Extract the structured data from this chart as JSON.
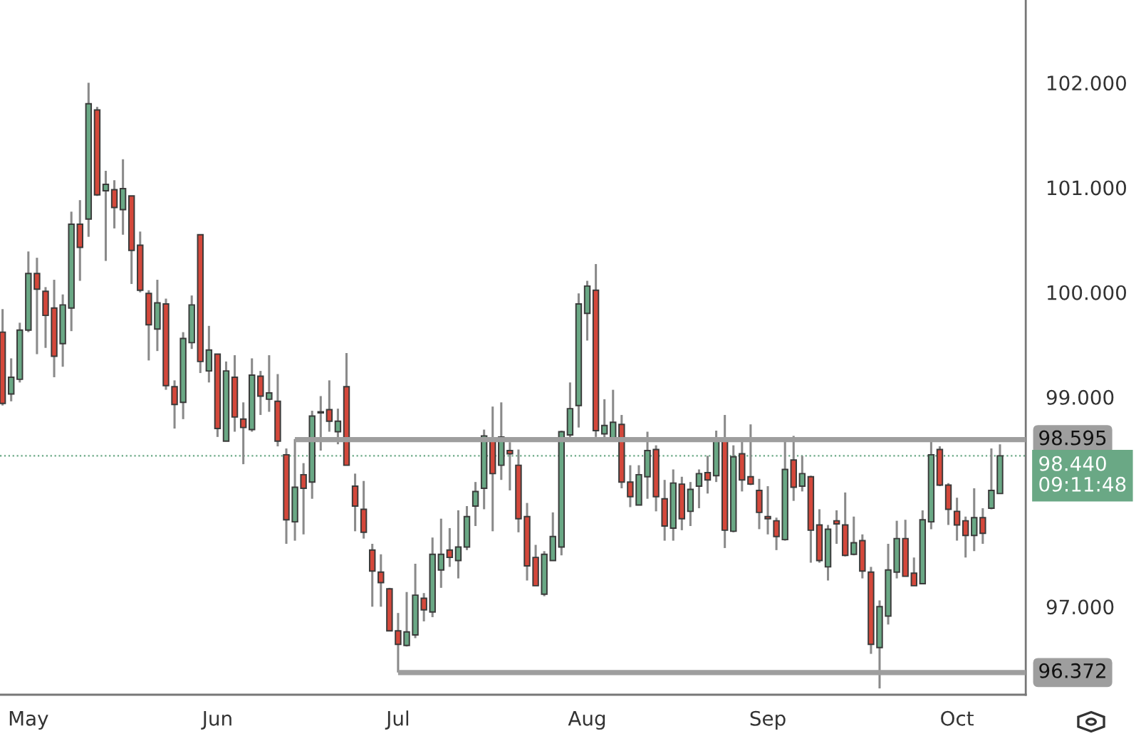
{
  "chart_data": {
    "type": "candlestick",
    "categories": [
      null,
      null,
      null,
      "May",
      null,
      null,
      null,
      null,
      null,
      null,
      null,
      null,
      null,
      null,
      null,
      null,
      null,
      null,
      null,
      null,
      null,
      null,
      null,
      null,
      null,
      "Jun",
      null,
      null,
      null,
      null,
      null,
      null,
      null,
      null,
      null,
      null,
      null,
      null,
      null,
      null,
      null,
      null,
      null,
      null,
      null,
      null,
      "Jul",
      null,
      null,
      null,
      null,
      null,
      null,
      null,
      null,
      null,
      null,
      null,
      null,
      null,
      null,
      null,
      null,
      null,
      null,
      null,
      null,
      null,
      "Aug",
      null,
      null,
      null,
      null,
      null,
      null,
      null,
      null,
      null,
      null,
      null,
      null,
      null,
      null,
      null,
      null,
      null,
      null,
      null,
      null,
      "Sep",
      null,
      null,
      null,
      null,
      null,
      null,
      null,
      null,
      null,
      null,
      null,
      null,
      null,
      null,
      null,
      null,
      null,
      null,
      null,
      null,
      null,
      "Oct",
      null,
      null,
      null,
      null,
      null
    ],
    "ohlc": [
      [
        99.62,
        99.84,
        98.92,
        98.94
      ],
      [
        99.03,
        99.37,
        98.96,
        99.19
      ],
      [
        99.17,
        99.71,
        99.14,
        99.64
      ],
      [
        99.64,
        100.39,
        99.62,
        100.18
      ],
      [
        100.18,
        100.33,
        99.41,
        100.03
      ],
      [
        100.01,
        100.05,
        99.47,
        99.78
      ],
      [
        99.85,
        100.12,
        99.19,
        99.39
      ],
      [
        99.51,
        99.98,
        99.29,
        99.88
      ],
      [
        99.85,
        100.77,
        99.63,
        100.65
      ],
      [
        100.65,
        100.88,
        100.11,
        100.43
      ],
      [
        100.7,
        102.0,
        100.53,
        101.8
      ],
      [
        101.74,
        101.77,
        100.92,
        100.93
      ],
      [
        100.97,
        101.16,
        100.3,
        101.03
      ],
      [
        100.98,
        101.07,
        100.61,
        100.81
      ],
      [
        100.79,
        101.27,
        100.55,
        100.99
      ],
      [
        100.92,
        100.92,
        100.08,
        100.4
      ],
      [
        100.45,
        100.58,
        100.0,
        100.02
      ],
      [
        99.99,
        100.02,
        99.35,
        99.69
      ],
      [
        99.65,
        100.12,
        99.44,
        99.9
      ],
      [
        99.89,
        99.94,
        99.07,
        99.11
      ],
      [
        99.1,
        99.16,
        98.7,
        98.93
      ],
      [
        98.95,
        99.62,
        98.79,
        99.56
      ],
      [
        99.52,
        99.97,
        99.46,
        99.88
      ],
      [
        100.55,
        100.55,
        99.23,
        99.34
      ],
      [
        99.25,
        99.68,
        99.14,
        99.45
      ],
      [
        99.41,
        99.41,
        98.62,
        98.7
      ],
      [
        98.58,
        99.34,
        98.58,
        99.25
      ],
      [
        99.19,
        99.4,
        98.67,
        98.81
      ],
      [
        98.79,
        98.95,
        98.36,
        98.71
      ],
      [
        98.69,
        99.37,
        98.67,
        99.21
      ],
      [
        99.2,
        99.25,
        98.83,
        99.01
      ],
      [
        98.98,
        99.4,
        98.86,
        99.04
      ],
      [
        98.96,
        99.22,
        98.53,
        98.58
      ],
      [
        98.45,
        98.51,
        97.6,
        97.83
      ],
      [
        97.81,
        98.6,
        97.63,
        98.14
      ],
      [
        98.26,
        98.37,
        97.69,
        98.13
      ],
      [
        98.19,
        98.87,
        98.03,
        98.82
      ],
      [
        98.86,
        99.01,
        98.49,
        98.85
      ],
      [
        98.88,
        99.16,
        98.67,
        98.77
      ],
      [
        98.67,
        98.89,
        98.55,
        98.77
      ],
      [
        99.1,
        99.42,
        98.35,
        98.35
      ],
      [
        98.15,
        98.27,
        97.72,
        97.96
      ],
      [
        97.93,
        98.2,
        97.65,
        97.71
      ],
      [
        97.54,
        97.6,
        97.0,
        97.34
      ],
      [
        97.33,
        97.5,
        97.0,
        97.23
      ],
      [
        97.17,
        97.18,
        96.77,
        96.77
      ],
      [
        96.77,
        96.94,
        96.372,
        96.64
      ],
      [
        96.63,
        97.14,
        96.62,
        96.76
      ],
      [
        96.73,
        97.41,
        96.7,
        97.11
      ],
      [
        97.08,
        97.13,
        96.86,
        96.97
      ],
      [
        96.95,
        97.66,
        96.9,
        97.5
      ],
      [
        97.35,
        97.84,
        97.18,
        97.5
      ],
      [
        97.54,
        97.75,
        97.38,
        97.47
      ],
      [
        97.44,
        97.92,
        97.27,
        97.57
      ],
      [
        97.57,
        97.96,
        97.54,
        97.86
      ],
      [
        97.96,
        98.19,
        97.77,
        98.1
      ],
      [
        98.13,
        98.69,
        97.93,
        98.63
      ],
      [
        98.58,
        98.91,
        97.72,
        98.27
      ],
      [
        98.35,
        98.95,
        98.21,
        98.62
      ],
      [
        98.49,
        98.57,
        98.11,
        98.46
      ],
      [
        98.35,
        98.5,
        97.71,
        97.84
      ],
      [
        97.86,
        97.99,
        97.25,
        97.39
      ],
      [
        97.47,
        97.59,
        97.2,
        97.2
      ],
      [
        97.12,
        97.53,
        97.1,
        97.5
      ],
      [
        97.44,
        97.9,
        97.44,
        97.67
      ],
      [
        97.57,
        98.68,
        97.49,
        98.67
      ],
      [
        98.64,
        99.14,
        98.59,
        98.89
      ],
      [
        98.92,
        99.99,
        98.71,
        99.89
      ],
      [
        99.8,
        100.11,
        99.54,
        100.06
      ],
      [
        100.02,
        100.27,
        98.62,
        98.68
      ],
      [
        98.65,
        98.98,
        98.6,
        98.73
      ],
      [
        98.61,
        99.07,
        98.6,
        98.76
      ],
      [
        98.74,
        98.83,
        98.13,
        98.19
      ],
      [
        98.19,
        98.35,
        97.95,
        98.05
      ],
      [
        97.97,
        98.35,
        97.97,
        98.26
      ],
      [
        98.24,
        98.67,
        98.03,
        98.49
      ],
      [
        98.5,
        98.54,
        97.91,
        98.05
      ],
      [
        98.03,
        98.21,
        97.63,
        97.77
      ],
      [
        97.75,
        98.31,
        97.63,
        98.18
      ],
      [
        98.17,
        98.24,
        97.73,
        97.84
      ],
      [
        97.91,
        98.19,
        97.77,
        98.12
      ],
      [
        98.15,
        98.31,
        97.94,
        98.27
      ],
      [
        98.28,
        98.44,
        98.08,
        98.21
      ],
      [
        98.25,
        98.68,
        98.19,
        98.61
      ],
      [
        98.6,
        98.83,
        97.56,
        97.73
      ],
      [
        97.72,
        98.54,
        97.71,
        98.43
      ],
      [
        98.46,
        98.58,
        98.1,
        98.21
      ],
      [
        98.24,
        98.74,
        98.16,
        98.17
      ],
      [
        98.11,
        98.22,
        97.74,
        97.9
      ],
      [
        97.86,
        98.15,
        97.69,
        97.84
      ],
      [
        97.82,
        97.85,
        97.54,
        97.67
      ],
      [
        97.64,
        98.59,
        97.63,
        98.31
      ],
      [
        98.4,
        98.63,
        98.01,
        98.14
      ],
      [
        98.15,
        98.44,
        98.1,
        98.27
      ],
      [
        98.24,
        98.25,
        97.42,
        97.73
      ],
      [
        97.78,
        97.93,
        97.42,
        97.44
      ],
      [
        97.38,
        97.78,
        97.25,
        97.74
      ],
      [
        97.82,
        97.92,
        97.6,
        97.79
      ],
      [
        97.78,
        98.09,
        97.48,
        97.49
      ],
      [
        97.5,
        97.86,
        97.49,
        97.61
      ],
      [
        97.63,
        97.69,
        97.27,
        97.34
      ],
      [
        97.33,
        97.38,
        96.55,
        96.64
      ],
      [
        96.61,
        97.06,
        96.22,
        97.0
      ],
      [
        96.91,
        97.6,
        96.83,
        97.35
      ],
      [
        97.33,
        97.82,
        97.27,
        97.65
      ],
      [
        97.65,
        97.83,
        97.29,
        97.29
      ],
      [
        97.32,
        97.47,
        97.2,
        97.2
      ],
      [
        97.22,
        97.92,
        97.22,
        97.83
      ],
      [
        97.81,
        98.6,
        97.74,
        98.45
      ],
      [
        98.5,
        98.53,
        98.15,
        98.16
      ],
      [
        98.16,
        98.18,
        97.78,
        97.93
      ],
      [
        97.91,
        98.04,
        97.63,
        97.78
      ],
      [
        97.82,
        97.86,
        97.47,
        97.68
      ],
      [
        97.68,
        98.13,
        97.53,
        97.85
      ],
      [
        97.85,
        97.94,
        97.6,
        97.7
      ],
      [
        97.94,
        98.51,
        97.93,
        98.11
      ],
      [
        98.08,
        98.55,
        98.08,
        98.44
      ]
    ],
    "colors": [
      "#d4483b",
      "#6aa885",
      "#6aa885",
      "#6aa885",
      "#d4483b",
      "#d4483b",
      "#d4483b",
      "#6aa885",
      "#6aa885",
      "#d4483b",
      "#6aa885",
      "#d4483b",
      "#6aa885",
      "#d4483b",
      "#6aa885",
      "#d4483b",
      "#d4483b",
      "#d4483b",
      "#6aa885",
      "#d4483b",
      "#d4483b",
      "#6aa885",
      "#6aa885",
      "#d4483b",
      "#6aa885",
      "#d4483b",
      "#6aa885",
      "#d4483b",
      "#d4483b",
      "#6aa885",
      "#d4483b",
      "#6aa885",
      "#d4483b",
      "#d4483b",
      "#6aa885",
      "#d4483b",
      "#6aa885",
      "#d4483b",
      "#d4483b",
      "#6aa885",
      "#d4483b",
      "#d4483b",
      "#d4483b",
      "#d4483b",
      "#d4483b",
      "#d4483b",
      "#d4483b",
      "#6aa885",
      "#6aa885",
      "#d4483b",
      "#6aa885",
      "#6aa885",
      "#d4483b",
      "#6aa885",
      "#6aa885",
      "#6aa885",
      "#6aa885",
      "#d4483b",
      "#6aa885",
      "#d4483b",
      "#d4483b",
      "#d4483b",
      "#d4483b",
      "#6aa885",
      "#6aa885",
      "#6aa885",
      "#6aa885",
      "#6aa885",
      "#6aa885",
      "#d4483b",
      "#6aa885",
      "#6aa885",
      "#d4483b",
      "#d4483b",
      "#6aa885",
      "#6aa885",
      "#d4483b",
      "#d4483b",
      "#6aa885",
      "#d4483b",
      "#6aa885",
      "#6aa885",
      "#d4483b",
      "#6aa885",
      "#d4483b",
      "#6aa885",
      "#d4483b",
      "#d4483b",
      "#d4483b",
      "#d4483b",
      "#d4483b",
      "#6aa885",
      "#d4483b",
      "#6aa885",
      "#d4483b",
      "#d4483b",
      "#6aa885",
      "#d4483b",
      "#d4483b",
      "#6aa885",
      "#d4483b",
      "#d4483b",
      "#6aa885",
      "#6aa885",
      "#6aa885",
      "#d4483b",
      "#d4483b",
      "#6aa885",
      "#6aa885",
      "#d4483b",
      "#d4483b",
      "#d4483b",
      "#d4483b",
      "#6aa885",
      "#d4483b",
      "#6aa885",
      "#6aa885"
    ],
    "ylim": [
      96.16,
      102.79
    ],
    "yticks": [
      {
        "value": 97,
        "label": "97.000"
      },
      {
        "value": 99,
        "label": "99.000"
      },
      {
        "value": 100,
        "label": "100.000"
      },
      {
        "value": 101,
        "label": "101.000"
      },
      {
        "value": 102,
        "label": "102.000"
      }
    ],
    "ref_lines": [
      {
        "axis": "y",
        "value": 98.595,
        "label": "98.595",
        "color": "#9e9e9e",
        "line_style": "solid"
      },
      {
        "axis": "y",
        "value": 96.372,
        "label": "96.372",
        "color": "#9e9e9e",
        "line_style": "solid"
      },
      {
        "axis": "y",
        "value": 98.44,
        "label": "98.440",
        "color": "#6aa885",
        "line_style": "dotted"
      }
    ],
    "annotations": [
      "09:11:48"
    ],
    "grid": false
  }
}
